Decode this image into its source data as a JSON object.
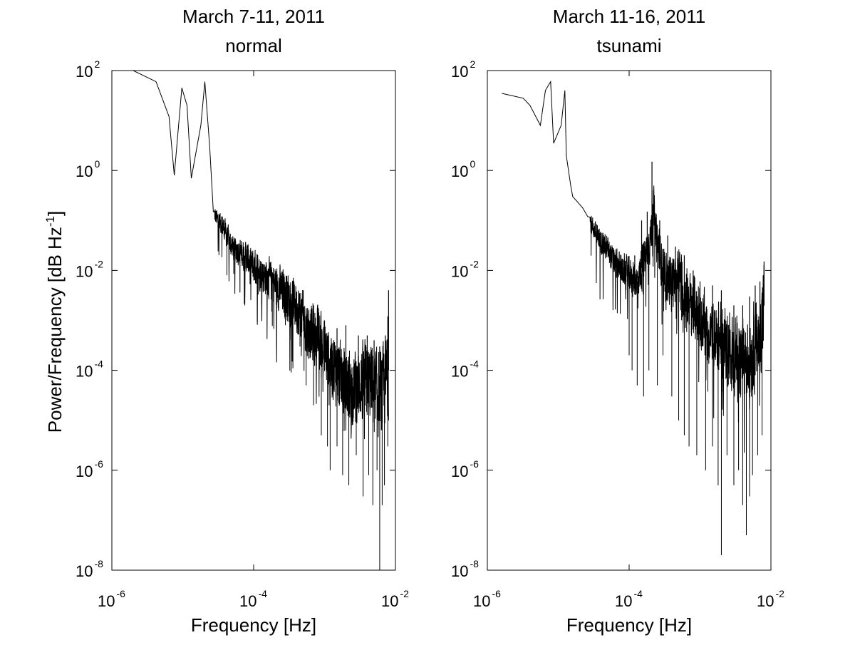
{
  "chart_data": [
    {
      "type": "line",
      "title": "March 7-11, 2011",
      "subtitle": "normal",
      "xlabel": "Frequency [Hz]",
      "ylabel": {
        "pre": "Power/Frequency [dB Hz",
        "exp": "-1",
        "post": "]"
      },
      "x_scale": "log",
      "y_scale": "log",
      "xlim": [
        1e-06,
        0.01
      ],
      "ylim": [
        1e-08,
        100
      ],
      "xticks": [
        {
          "base": "10",
          "exp": "-6",
          "value": 1e-06
        },
        {
          "base": "10",
          "exp": "-4",
          "value": 0.0001
        },
        {
          "base": "10",
          "exp": "-2",
          "value": 0.01
        }
      ],
      "yticks": [
        {
          "base": "10",
          "exp": "-8",
          "value": 1e-08
        },
        {
          "base": "10",
          "exp": "-6",
          "value": 1e-06
        },
        {
          "base": "10",
          "exp": "-4",
          "value": 0.0001
        },
        {
          "base": "10",
          "exp": "-2",
          "value": 0.01
        },
        {
          "base": "10",
          "exp": "0",
          "value": 1
        },
        {
          "base": "10",
          "exp": "2",
          "value": 100
        }
      ],
      "grid": false,
      "line_color": "#000000",
      "points": [
        [
          2e-06,
          100
        ],
        [
          4.2e-06,
          60
        ],
        [
          6.4e-06,
          12
        ],
        [
          7.6e-06,
          0.8
        ],
        [
          9.7e-06,
          45
        ],
        [
          1.15e-05,
          20
        ],
        [
          1.32e-05,
          0.7
        ],
        [
          1.8e-05,
          8
        ],
        [
          2.05e-05,
          60
        ],
        [
          2.4e-05,
          3
        ],
        [
          2.7e-05,
          0.15
        ],
        [
          3e-05,
          0.11
        ],
        [
          3.5e-05,
          0.09
        ],
        [
          4e-05,
          0.06
        ],
        [
          4.5e-05,
          0.04
        ],
        [
          5e-05,
          0.03
        ],
        [
          6e-05,
          0.025
        ],
        [
          7e-05,
          0.02
        ],
        [
          8e-05,
          0.018
        ],
        [
          0.0001,
          0.012
        ],
        [
          0.00012,
          0.01
        ],
        [
          0.00015,
          0.008
        ],
        [
          0.0002,
          0.005
        ],
        [
          0.00025,
          0.004
        ],
        [
          0.0003,
          0.003
        ],
        [
          0.00035,
          0.0025
        ],
        [
          0.0004,
          0.002
        ],
        [
          0.0005,
          0.001
        ],
        [
          0.0006,
          0.0006
        ],
        [
          0.0008,
          0.00045
        ],
        [
          0.001,
          0.00025
        ],
        [
          0.0013,
          0.00013
        ],
        [
          0.0016,
          8e-05
        ],
        [
          0.002,
          5e-05
        ],
        [
          0.0025,
          4e-05
        ],
        [
          0.003,
          5e-05
        ],
        [
          0.004,
          6e-05
        ],
        [
          0.005,
          5e-05
        ],
        [
          0.006,
          3e-05
        ],
        [
          0.007,
          5e-05
        ],
        [
          0.0075,
          8e-05
        ],
        [
          0.008,
          0.0001
        ]
      ],
      "dips": [
        [
          4.2e-05,
          0.008
        ],
        [
          7.5e-05,
          0.003
        ],
        [
          0.00013,
          0.002
        ],
        [
          0.00018,
          0.0015
        ],
        [
          0.00028,
          0.0008
        ],
        [
          0.00035,
          0.00015
        ],
        [
          0.00045,
          0.0003
        ],
        [
          0.00055,
          5e-05
        ],
        [
          0.0007,
          2e-05
        ],
        [
          0.0009,
          5e-06
        ],
        [
          0.0011,
          3e-06
        ],
        [
          0.0012,
          1e-06
        ],
        [
          0.0015,
          3e-06
        ],
        [
          0.0018,
          8e-07
        ],
        [
          0.0022,
          5e-07
        ],
        [
          0.0028,
          2e-06
        ],
        [
          0.0035,
          3e-07
        ],
        [
          0.0042,
          8e-07
        ],
        [
          0.0048,
          2e-07
        ],
        [
          0.0055,
          1e-06
        ],
        [
          0.006,
          1e-08
        ],
        [
          0.0065,
          2e-07
        ],
        [
          0.007,
          5e-07
        ],
        [
          0.0078,
          3e-06
        ]
      ],
      "peaks": [
        [
          0.0003,
          0.006
        ],
        [
          0.0005,
          0.004
        ],
        [
          0.0007,
          0.002
        ],
        [
          0.001,
          0.001
        ],
        [
          0.0015,
          0.0007
        ],
        [
          0.002,
          0.0008
        ],
        [
          0.003,
          0.0005
        ],
        [
          0.004,
          0.0005
        ],
        [
          0.005,
          0.0004
        ],
        [
          0.006,
          0.0003
        ],
        [
          0.0072,
          0.0005
        ],
        [
          0.0078,
          0.0012
        ],
        [
          0.008,
          0.004
        ]
      ]
    },
    {
      "type": "line",
      "title": "March 11-16, 2011",
      "subtitle": "tsunami",
      "xlabel": "Frequency [Hz]",
      "ylabel": null,
      "x_scale": "log",
      "y_scale": "log",
      "xlim": [
        1e-06,
        0.01
      ],
      "ylim": [
        1e-08,
        100
      ],
      "xticks": [
        {
          "base": "10",
          "exp": "-6",
          "value": 1e-06
        },
        {
          "base": "10",
          "exp": "-4",
          "value": 0.0001
        },
        {
          "base": "10",
          "exp": "-2",
          "value": 0.01
        }
      ],
      "yticks": [
        {
          "base": "10",
          "exp": "-8",
          "value": 1e-08
        },
        {
          "base": "10",
          "exp": "-6",
          "value": 1e-06
        },
        {
          "base": "10",
          "exp": "-4",
          "value": 0.0001
        },
        {
          "base": "10",
          "exp": "-2",
          "value": 0.01
        },
        {
          "base": "10",
          "exp": "0",
          "value": 1
        },
        {
          "base": "10",
          "exp": "2",
          "value": 100
        }
      ],
      "grid": false,
      "line_color": "#000000",
      "points": [
        [
          1.6e-06,
          35
        ],
        [
          3.2e-06,
          28
        ],
        [
          4e-06,
          20
        ],
        [
          5.6e-06,
          8
        ],
        [
          6.6e-06,
          40
        ],
        [
          7.8e-06,
          60
        ],
        [
          8.6e-06,
          3.5
        ],
        [
          1.1e-05,
          8
        ],
        [
          1.24e-05,
          40
        ],
        [
          1.3e-05,
          2
        ],
        [
          1.5e-05,
          0.5
        ],
        [
          1.6e-05,
          0.3
        ],
        [
          1.8e-05,
          0.25
        ],
        [
          2.2e-05,
          0.18
        ],
        [
          2.6e-05,
          0.12
        ],
        [
          3e-05,
          0.08
        ],
        [
          3.5e-05,
          0.05
        ],
        [
          4e-05,
          0.04
        ],
        [
          5e-05,
          0.025
        ],
        [
          6e-05,
          0.015
        ],
        [
          7e-05,
          0.012
        ],
        [
          0.0001,
          0.008
        ],
        [
          0.00013,
          0.006
        ],
        [
          0.00016,
          0.015
        ],
        [
          0.0002,
          0.04
        ],
        [
          0.00022,
          0.2
        ],
        [
          0.00024,
          0.05
        ],
        [
          0.0003,
          0.01
        ],
        [
          0.0004,
          0.005
        ],
        [
          0.0005,
          0.01
        ],
        [
          0.0006,
          0.003
        ],
        [
          0.0008,
          0.002
        ],
        [
          0.001,
          0.0012
        ],
        [
          0.0013,
          0.0006
        ],
        [
          0.0016,
          0.0005
        ],
        [
          0.002,
          0.0004
        ],
        [
          0.0025,
          0.0003
        ],
        [
          0.003,
          0.0002
        ],
        [
          0.004,
          0.00015
        ],
        [
          0.005,
          0.0002
        ],
        [
          0.006,
          0.0003
        ],
        [
          0.007,
          0.0005
        ],
        [
          0.0075,
          0.001
        ],
        [
          0.008,
          0.002
        ]
      ],
      "dips": [
        [
          0.0001,
          0.0002
        ],
        [
          0.00011,
          0.0001
        ],
        [
          0.00013,
          5e-05
        ],
        [
          0.00016,
          3e-05
        ],
        [
          0.00019,
          0.0001
        ],
        [
          0.00025,
          5e-05
        ],
        [
          0.0003,
          0.0002
        ],
        [
          0.0004,
          3e-05
        ],
        [
          0.0005,
          1e-05
        ],
        [
          0.0006,
          5e-06
        ],
        [
          0.0007,
          3e-06
        ],
        [
          0.0009,
          2e-06
        ],
        [
          0.0012,
          1e-06
        ],
        [
          0.0015,
          3e-06
        ],
        [
          0.0018,
          5e-07
        ],
        [
          0.002,
          2e-08
        ],
        [
          0.0024,
          2e-06
        ],
        [
          0.003,
          5e-07
        ],
        [
          0.0035,
          1e-06
        ],
        [
          0.004,
          2e-07
        ],
        [
          0.0045,
          5e-08
        ],
        [
          0.005,
          3e-07
        ],
        [
          0.0055,
          8e-07
        ],
        [
          0.0065,
          2e-06
        ],
        [
          0.0075,
          5e-06
        ]
      ],
      "peaks": [
        [
          0.00012,
          0.02
        ],
        [
          0.00015,
          0.1
        ],
        [
          0.00018,
          0.15
        ],
        [
          0.00021,
          1.5
        ],
        [
          0.00027,
          0.1
        ],
        [
          0.00035,
          0.05
        ],
        [
          0.00045,
          0.03
        ],
        [
          0.0006,
          0.02
        ],
        [
          0.0008,
          0.01
        ],
        [
          0.001,
          0.006
        ],
        [
          0.0015,
          0.005
        ],
        [
          0.002,
          0.004
        ],
        [
          0.003,
          0.002
        ],
        [
          0.004,
          0.002
        ],
        [
          0.005,
          0.003
        ],
        [
          0.006,
          0.005
        ],
        [
          0.007,
          0.006
        ],
        [
          0.008,
          0.015
        ]
      ]
    }
  ]
}
